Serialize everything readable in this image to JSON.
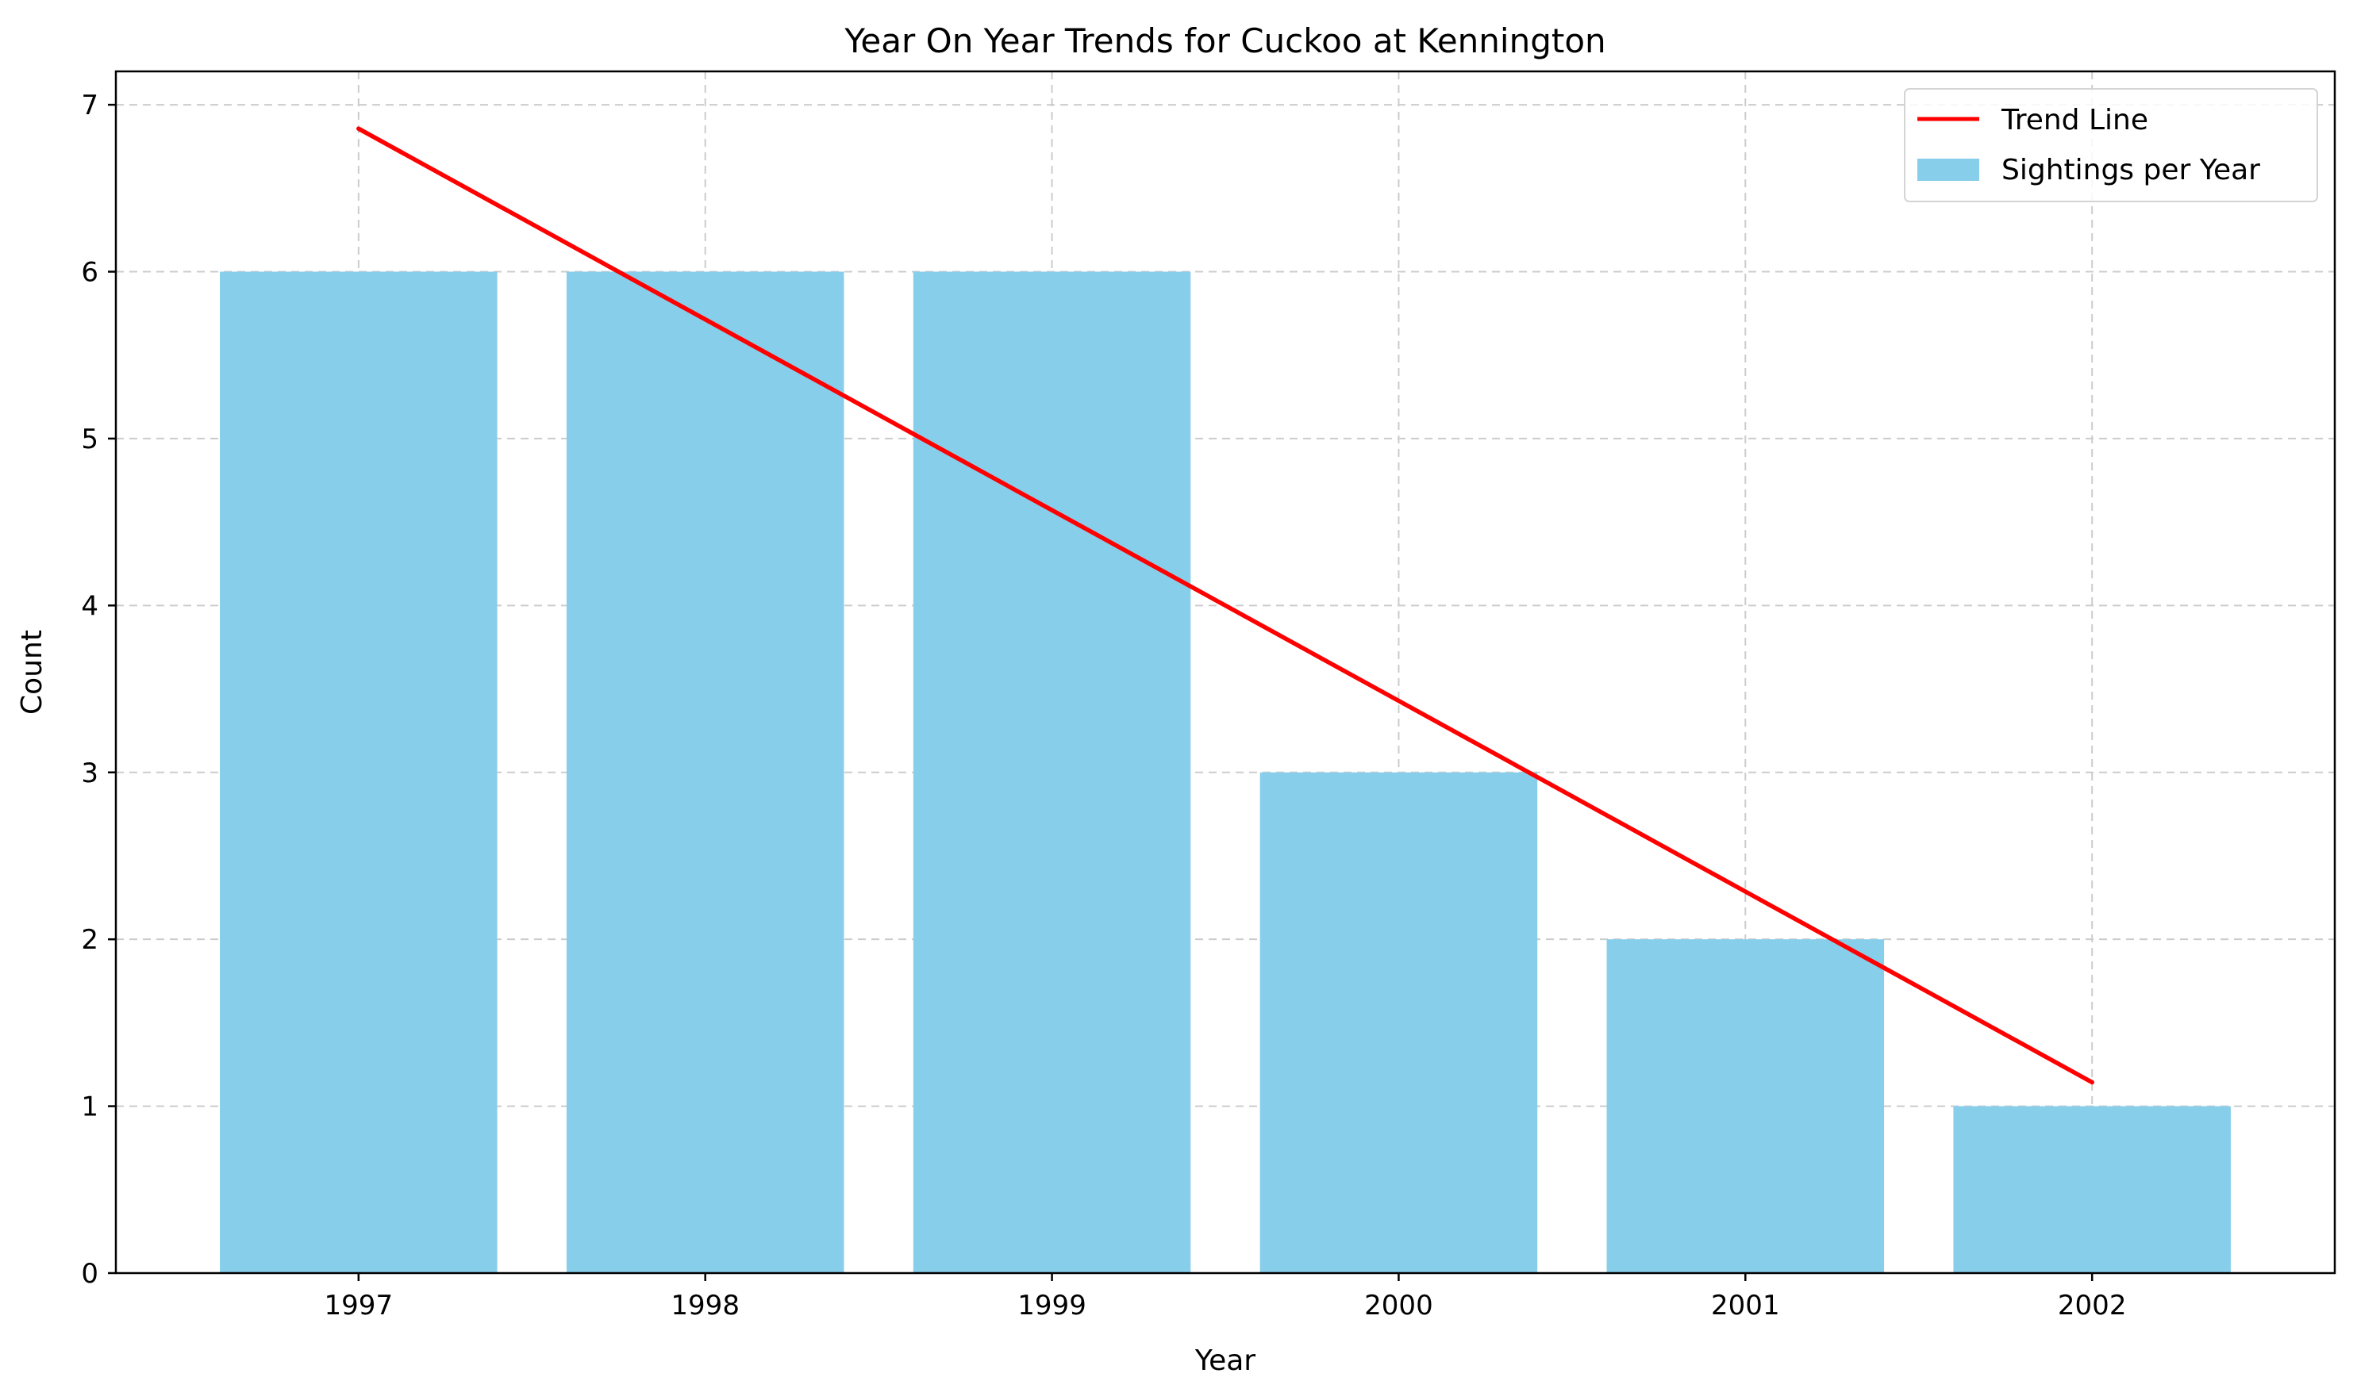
{
  "chart_data": {
    "type": "bar",
    "title": "Year On Year Trends for Cuckoo at Kennington",
    "xlabel": "Year",
    "ylabel": "Count",
    "categories": [
      "1997",
      "1998",
      "1999",
      "2000",
      "2001",
      "2002"
    ],
    "series": [
      {
        "name": "Sightings per Year",
        "type": "bar",
        "color": "#87ceeb",
        "values": [
          6,
          6,
          6,
          3,
          2,
          1
        ]
      },
      {
        "name": "Trend Line",
        "type": "line",
        "color": "#ff0000",
        "values": [
          6.857,
          5.714,
          4.571,
          3.429,
          2.286,
          1.143
        ]
      }
    ],
    "yticks": [
      0,
      1,
      2,
      3,
      4,
      5,
      6,
      7
    ],
    "ylim": [
      0,
      7.2
    ],
    "grid": true,
    "legend": {
      "position": "top-right",
      "entries": [
        "Trend Line",
        "Sightings per Year"
      ]
    }
  }
}
